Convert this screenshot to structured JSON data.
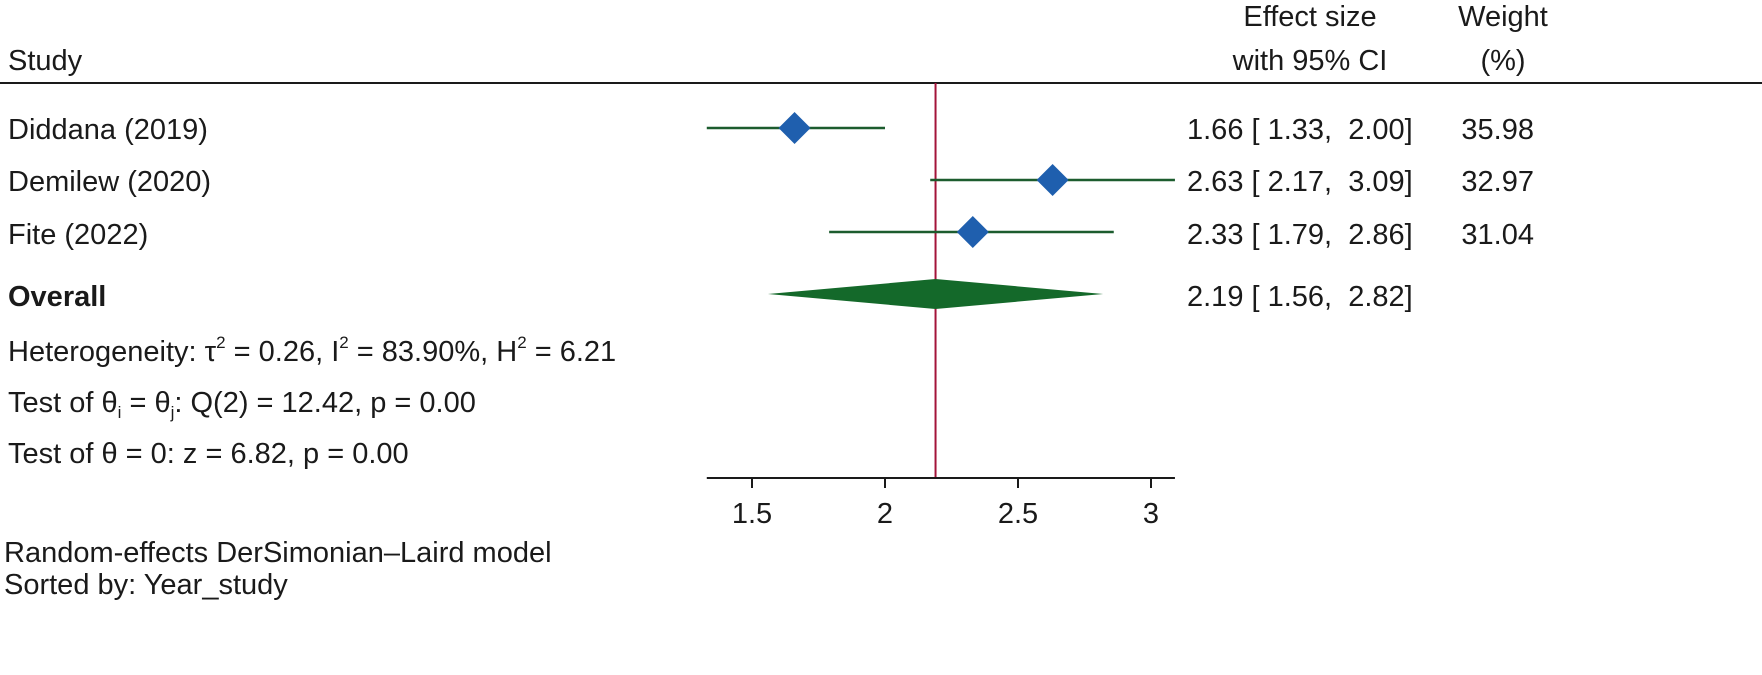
{
  "chart_data": {
    "type": "forest",
    "header": {
      "study": "Study",
      "effect_line1": "Effect size",
      "effect_line2": "with 95% CI",
      "weight_line1": "Weight",
      "weight_line2": "(%)"
    },
    "studies": [
      {
        "name": "Diddana (2019)",
        "es": 1.66,
        "lo": 1.33,
        "hi": 2.0,
        "es_text": "1.66 [ 1.33,  2.00]",
        "weight": 35.98,
        "weight_text": "35.98"
      },
      {
        "name": "Demilew (2020)",
        "es": 2.63,
        "lo": 2.17,
        "hi": 3.09,
        "es_text": "2.63 [ 2.17,  3.09]",
        "weight": 32.97,
        "weight_text": "32.97"
      },
      {
        "name": "Fite (2022)",
        "es": 2.33,
        "lo": 1.79,
        "hi": 2.86,
        "es_text": "2.33 [ 1.79,  2.86]",
        "weight": 31.04,
        "weight_text": "31.04"
      }
    ],
    "overall": {
      "label": "Overall",
      "es": 2.19,
      "lo": 1.56,
      "hi": 2.82,
      "es_text": "2.19 [ 1.56,  2.82]"
    },
    "heterogeneity": {
      "prefix": "Heterogeneity: τ",
      "tau_sup": "2",
      "tau_rest": " = 0.26, I",
      "i_sup": "2",
      "i_rest": " = 83.90%, H",
      "h_sup": "2",
      "h_rest": " = 6.21"
    },
    "test_equal": {
      "prefix": "Test of θ",
      "sub_i": "i",
      "middle": " = θ",
      "sub_j": "j",
      "rest": ": Q(2) = 12.42, p = 0.00"
    },
    "test_zero": "Test of θ = 0: z = 6.82, p = 0.00",
    "x_axis": {
      "ticks": [
        1.5,
        2,
        2.5,
        3
      ],
      "tick_labels": [
        "1.5",
        "2",
        "2.5",
        "3"
      ],
      "range": [
        1.33,
        3.09
      ]
    },
    "reference_line": 2.19,
    "footnotes": [
      "Random-effects DerSimonian–Laird model",
      "Sorted by: Year_study"
    ],
    "colors": {
      "ci_line": "#1c5c2e",
      "study_marker": "#1f5fae",
      "overall_diamond": "#14692a",
      "reference_line": "#a3143a",
      "text": "#1a1a1a"
    }
  }
}
